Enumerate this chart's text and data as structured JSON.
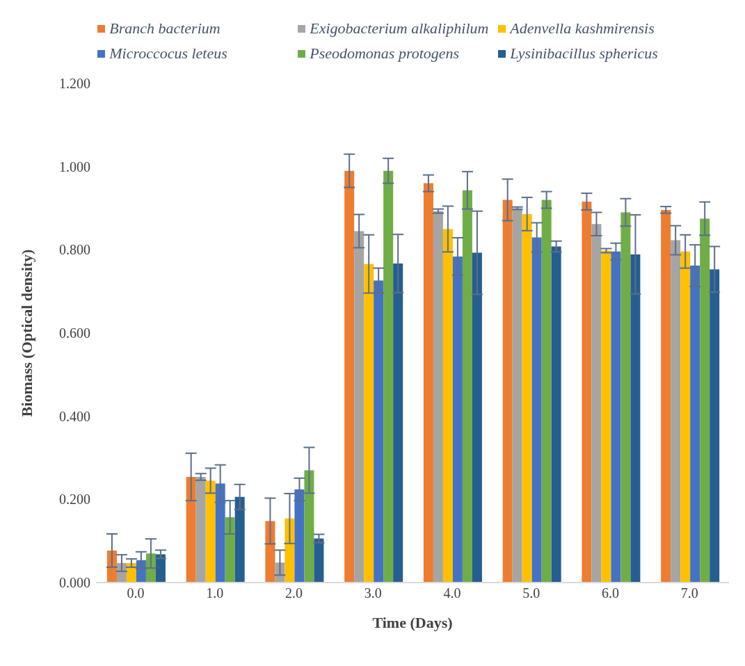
{
  "chart_data": {
    "type": "bar",
    "xlabel": "Time (Days)",
    "ylabel": "Biomass (Optical density)",
    "categories": [
      "0.0",
      "1.0",
      "2.0",
      "3.0",
      "4.0",
      "5.0",
      "6.0",
      "7.0"
    ],
    "series": [
      {
        "name": "Branch bacterium",
        "color": "#ed7d31",
        "values": [
          0.077,
          0.254,
          0.148,
          0.99,
          0.96,
          0.92,
          0.916,
          0.896
        ],
        "errors": [
          0.04,
          0.057,
          0.055,
          0.04,
          0.02,
          0.05,
          0.02,
          0.008
        ]
      },
      {
        "name": "Exigobacterium alkaliphilum",
        "color": "#a5a5a5",
        "values": [
          0.047,
          0.254,
          0.048,
          0.845,
          0.893,
          0.9,
          0.862,
          0.823
        ],
        "errors": [
          0.02,
          0.008,
          0.03,
          0.04,
          0.005,
          0.003,
          0.028,
          0.035
        ]
      },
      {
        "name": "Adenvella kashmirensis",
        "color": "#ffc000",
        "values": [
          0.047,
          0.245,
          0.154,
          0.766,
          0.85,
          0.886,
          0.798,
          0.796
        ],
        "errors": [
          0.01,
          0.03,
          0.06,
          0.07,
          0.055,
          0.04,
          0.005,
          0.04
        ]
      },
      {
        "name": "Microccocus leteus",
        "color": "#4472c4",
        "values": [
          0.054,
          0.238,
          0.224,
          0.726,
          0.784,
          0.83,
          0.796,
          0.762
        ],
        "errors": [
          0.02,
          0.045,
          0.027,
          0.03,
          0.045,
          0.035,
          0.02,
          0.05
        ]
      },
      {
        "name": "Pseodomonas protogens",
        "color": "#70ad47",
        "values": [
          0.07,
          0.157,
          0.27,
          0.99,
          0.943,
          0.92,
          0.89,
          0.875
        ],
        "errors": [
          0.035,
          0.04,
          0.055,
          0.03,
          0.045,
          0.02,
          0.033,
          0.04
        ]
      },
      {
        "name": "Lysinibacillus sphericus",
        "color": "#255e91",
        "values": [
          0.068,
          0.206,
          0.106,
          0.767,
          0.793,
          0.808,
          0.789,
          0.753
        ],
        "errors": [
          0.01,
          0.03,
          0.01,
          0.07,
          0.1,
          0.013,
          0.095,
          0.055
        ]
      }
    ],
    "ylim": [
      0,
      1.2
    ],
    "yticks": [
      {
        "value": 0,
        "label": "0.000"
      },
      {
        "value": 0.2,
        "label": "0.200"
      },
      {
        "value": 0.4,
        "label": "0.400"
      },
      {
        "value": 0.6,
        "label": "0.600"
      },
      {
        "value": 0.8,
        "label": "0.800"
      },
      {
        "value": 1,
        "label": "1.000"
      },
      {
        "value": 1.2,
        "label": "1.200"
      }
    ],
    "grid": false,
    "legend": "top"
  }
}
